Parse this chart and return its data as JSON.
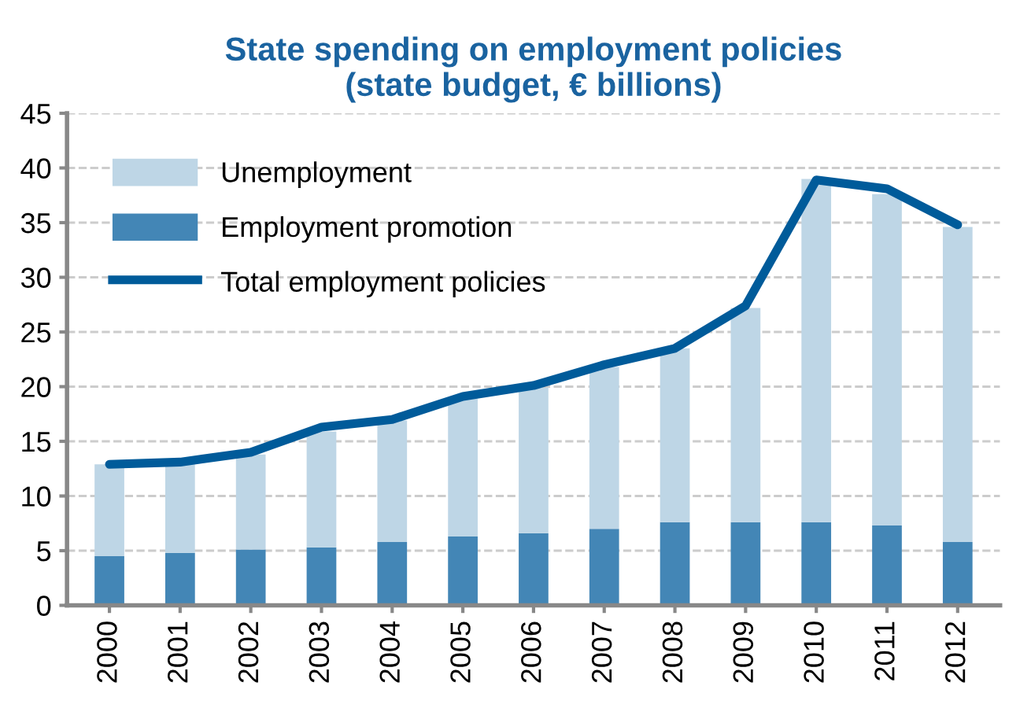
{
  "chart_data": {
    "type": "bar",
    "stacked": true,
    "title": "State spending on employment policies\n(state budget, € billions)",
    "categories": [
      "2000",
      "2001",
      "2002",
      "2003",
      "2004",
      "2005",
      "2006",
      "2007",
      "2008",
      "2009",
      "2010",
      "2011",
      "2012"
    ],
    "series": [
      {
        "name": "Employment promotion",
        "color": "#4386b6",
        "values": [
          4.5,
          4.8,
          5.1,
          5.3,
          5.8,
          6.3,
          6.6,
          7.0,
          7.6,
          7.6,
          7.6,
          7.3,
          5.8
        ]
      },
      {
        "name": "Unemployment",
        "color": "#bed6e6",
        "values": [
          8.4,
          8.1,
          8.7,
          10.6,
          11.1,
          12.6,
          13.3,
          14.8,
          15.9,
          19.6,
          31.4,
          30.3,
          28.8
        ]
      },
      {
        "name": "Total employment policies",
        "type": "line",
        "color": "#005b9a",
        "values": [
          12.9,
          13.1,
          14.0,
          16.3,
          17.0,
          19.1,
          20.1,
          22.0,
          23.5,
          27.4,
          38.9,
          38.1,
          34.8
        ]
      }
    ],
    "ylim": [
      0,
      45
    ],
    "yticks": [
      0,
      5,
      10,
      15,
      20,
      25,
      30,
      35,
      40,
      45
    ],
    "grid": "y",
    "legend": "top left",
    "marker": "none",
    "line_style": "solid"
  }
}
